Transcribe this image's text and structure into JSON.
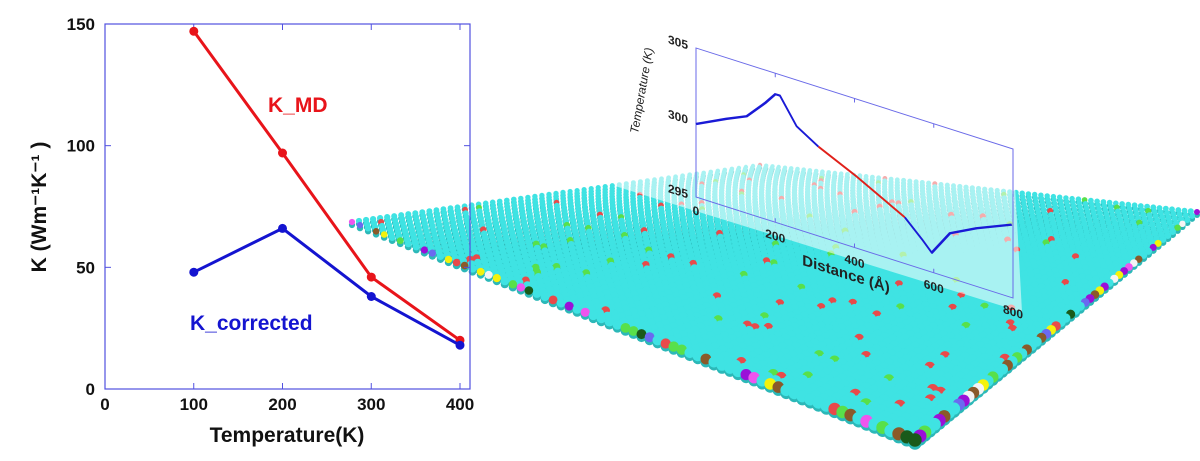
{
  "chart_data": [
    {
      "type": "line",
      "xlabel": "Temperature(K)",
      "ylabel": "K (Wm⁻¹K⁻¹ )",
      "xlim": [
        0,
        400
      ],
      "ylim": [
        0,
        150
      ],
      "xticks": [
        "0",
        "100",
        "200",
        "300",
        "400"
      ],
      "yticks": [
        "0",
        "50",
        "100",
        "150"
      ],
      "grid": false,
      "x": [
        100,
        200,
        300,
        400
      ],
      "series": [
        {
          "name": "K_MD",
          "color": "#e8141a",
          "values": [
            147,
            97,
            46,
            20
          ]
        },
        {
          "name": "K_corrected",
          "color": "#1414d0",
          "values": [
            48,
            66,
            38,
            18
          ]
        }
      ],
      "legend_placement": "inline labels"
    },
    {
      "type": "line",
      "xlabel": "Distance (Å)",
      "ylabel": "Temperature (K)",
      "xlim": [
        0,
        800
      ],
      "ylim": [
        295,
        305
      ],
      "xticks": [
        "0",
        "200",
        "400",
        "600",
        "800"
      ],
      "yticks": [
        "295",
        "300",
        "305"
      ],
      "grid": false,
      "x": [
        0,
        77,
        128,
        175,
        200,
        212,
        254,
        309,
        406,
        527,
        570,
        595,
        641,
        708,
        797
      ],
      "values": [
        299.9,
        300.9,
        301.5,
        302.8,
        303.6,
        303.6,
        301.9,
        301.0,
        299.8,
        298.1,
        297.0,
        296.3,
        298.0,
        298.9,
        299.9
      ],
      "highlight_range": [
        309,
        527
      ],
      "colors": {
        "line": "#1a1ad6",
        "highlight": "#e0201a"
      }
    }
  ],
  "scene": {
    "atom_color": "#3fe3e3",
    "dopant_colors": [
      "#58e04a",
      "#e84a4a",
      "#ee55ee",
      "#f4f20c",
      "#9a10d8",
      "#8a5a2a",
      "#f4f4f4",
      "#1a5a1a",
      "#6a6af0"
    ]
  }
}
